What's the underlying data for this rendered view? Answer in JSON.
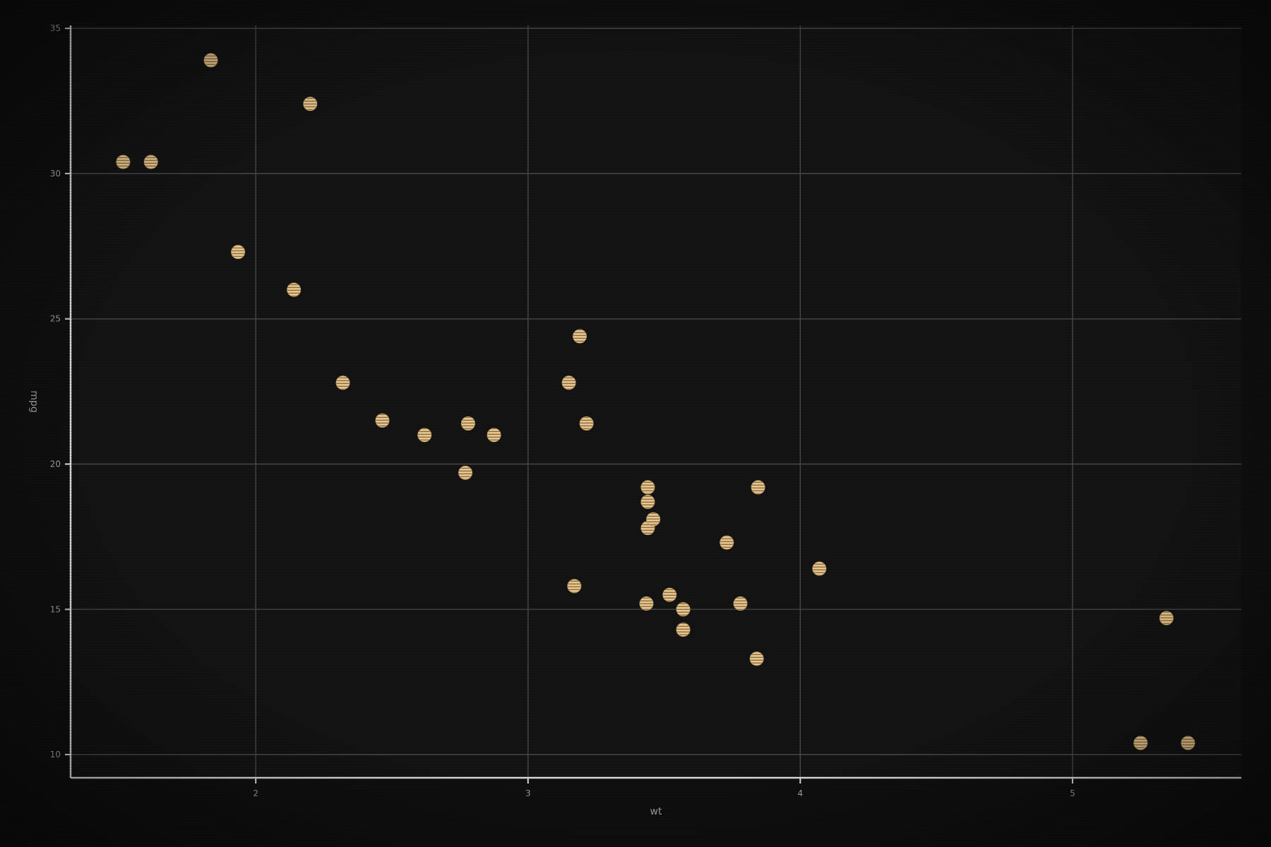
{
  "chart_data": {
    "type": "scatter",
    "title": "",
    "xlabel": "wt",
    "ylabel": "mpg",
    "xlim": [
      1.32,
      5.62
    ],
    "ylim": [
      9.2,
      35.1
    ],
    "x_ticks": [
      2,
      3,
      4,
      5
    ],
    "x_tick_labels": [
      "2",
      "3",
      "4",
      "5"
    ],
    "y_ticks": [
      10,
      15,
      20,
      25,
      30,
      35
    ],
    "y_tick_labels": [
      "10",
      "15",
      "20",
      "25",
      "30",
      "35"
    ],
    "grid": true,
    "legend": "none",
    "colors": {
      "background": "#101010",
      "panel": "#141414",
      "grid": "#4a4a4a",
      "axis": "#e8e8e8",
      "text": "#a8a8a8",
      "point": "#e8c58c"
    },
    "points": [
      {
        "x": 1.513,
        "y": 30.4
      },
      {
        "x": 1.615,
        "y": 30.4
      },
      {
        "x": 1.835,
        "y": 33.9
      },
      {
        "x": 1.935,
        "y": 27.3
      },
      {
        "x": 2.14,
        "y": 26.0
      },
      {
        "x": 2.2,
        "y": 32.4
      },
      {
        "x": 2.32,
        "y": 22.8
      },
      {
        "x": 2.465,
        "y": 21.5
      },
      {
        "x": 2.62,
        "y": 21.0
      },
      {
        "x": 2.77,
        "y": 19.7
      },
      {
        "x": 2.78,
        "y": 21.4
      },
      {
        "x": 2.875,
        "y": 21.0
      },
      {
        "x": 3.15,
        "y": 22.8
      },
      {
        "x": 3.17,
        "y": 15.8
      },
      {
        "x": 3.19,
        "y": 24.4
      },
      {
        "x": 3.215,
        "y": 21.4
      },
      {
        "x": 3.435,
        "y": 15.2
      },
      {
        "x": 3.44,
        "y": 17.8
      },
      {
        "x": 3.44,
        "y": 18.7
      },
      {
        "x": 3.44,
        "y": 19.2
      },
      {
        "x": 3.46,
        "y": 18.1
      },
      {
        "x": 3.52,
        "y": 15.5
      },
      {
        "x": 3.57,
        "y": 15.0
      },
      {
        "x": 3.57,
        "y": 14.3
      },
      {
        "x": 3.73,
        "y": 17.3
      },
      {
        "x": 3.78,
        "y": 15.2
      },
      {
        "x": 3.84,
        "y": 13.3
      },
      {
        "x": 3.845,
        "y": 19.2
      },
      {
        "x": 4.07,
        "y": 16.4
      },
      {
        "x": 5.25,
        "y": 10.4
      },
      {
        "x": 5.345,
        "y": 14.7
      },
      {
        "x": 5.424,
        "y": 10.4
      }
    ]
  }
}
